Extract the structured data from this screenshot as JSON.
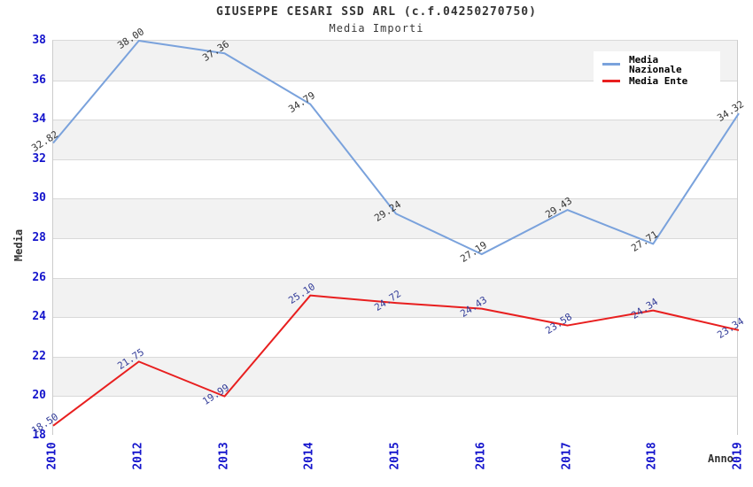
{
  "title": "GIUSEPPE CESARI SSD ARL (c.f.04250270750)",
  "subtitle": "Media Importi",
  "colors": {
    "nazionale_line": "#7aa2dc",
    "ente_line": "#e81f1f",
    "axis_tick_label": "#1414cc",
    "nazionale_value_label": "#333333",
    "ente_value_label": "#333d99",
    "band_gray": "#f2f2f2",
    "gridline": "#d9d9d9",
    "title_text": "#333333"
  },
  "legend": {
    "items": [
      {
        "label": "Media Nazionale",
        "color": "#7aa2dc"
      },
      {
        "label": "Media Ente",
        "color": "#e81f1f"
      }
    ]
  },
  "chart_data": {
    "type": "line",
    "x": [
      "2010",
      "2012",
      "2013",
      "2014",
      "2015",
      "2016",
      "2017",
      "2018",
      "2019"
    ],
    "series": [
      {
        "name": "Media Nazionale",
        "values": [
          32.82,
          38.0,
          37.36,
          34.79,
          29.24,
          27.19,
          29.43,
          27.71,
          34.32
        ],
        "labels": [
          "32.82",
          "38.00",
          "37.36",
          "34.79",
          "29.24",
          "27.19",
          "29.43",
          "27.71",
          "34.32"
        ],
        "line_color": "#7aa2dc",
        "label_color": "#333333"
      },
      {
        "name": "Media Ente",
        "values": [
          18.5,
          21.75,
          19.99,
          25.1,
          24.72,
          24.43,
          23.58,
          24.34,
          23.34
        ],
        "labels": [
          "18.50",
          "21.75",
          "19.99",
          "25.10",
          "24.72",
          "24.43",
          "23.58",
          "24.34",
          "23.34"
        ],
        "line_color": "#e81f1f",
        "label_color": "#333d99"
      }
    ],
    "xlabel": "Anno",
    "ylabel": "Media",
    "ylim": [
      18,
      38
    ],
    "ytick_step": 2,
    "yticks": [
      "18",
      "20",
      "22",
      "24",
      "26",
      "28",
      "30",
      "32",
      "34",
      "36",
      "38"
    ],
    "grid": true,
    "legend_position": "top-right",
    "banding": "alternating horizontal gray bands every 2 units, gray on odd bands from top"
  }
}
